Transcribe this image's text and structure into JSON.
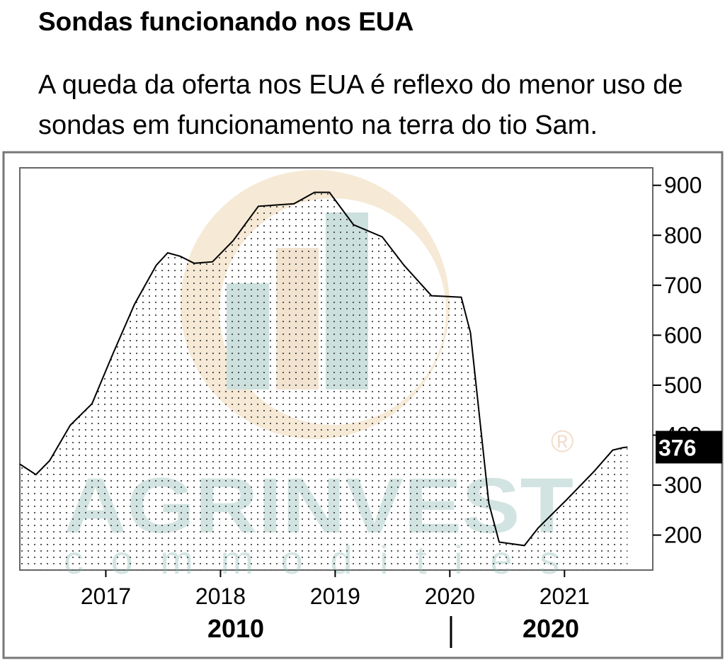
{
  "chart_data": {
    "type": "area",
    "title": "Sondas funcionando nos EUA",
    "subtitle": "A queda da oferta nos EUA é reflexo do menor uso de sondas em funcionamento na terra do tio Sam.",
    "x": [
      2016.25,
      2016.39,
      2016.51,
      2016.69,
      2016.88,
      2017.06,
      2017.25,
      2017.44,
      2017.54,
      2017.65,
      2017.77,
      2017.93,
      2018.11,
      2018.33,
      2018.64,
      2018.82,
      2018.95,
      2019.16,
      2019.41,
      2019.6,
      2019.84,
      2020.1,
      2020.18,
      2020.34,
      2020.43,
      2020.65,
      2020.77,
      2021.02,
      2021.26,
      2021.42,
      2021.51,
      2021.55
    ],
    "series": [
      {
        "name": "Sondas",
        "color": "#000000",
        "values": [
          342,
          321,
          349,
          420,
          463,
          562,
          662,
          740,
          765,
          758,
          744,
          747,
          789,
          858,
          863,
          886,
          886,
          821,
          797,
          740,
          679,
          676,
          605,
          264,
          186,
          179,
          214,
          271,
          328,
          370,
          375,
          376
        ]
      }
    ],
    "xlim": [
      2016.25,
      2021.77
    ],
    "xticks": [
      2017,
      2018,
      2019,
      2020,
      2021
    ],
    "ylim": [
      130,
      935
    ],
    "yticks": [
      200,
      300,
      400,
      500,
      600,
      700,
      800,
      900
    ],
    "period_labels": [
      "2010",
      "2020"
    ],
    "watermark": [
      "AGRINVEST",
      "commodities",
      "®"
    ]
  }
}
